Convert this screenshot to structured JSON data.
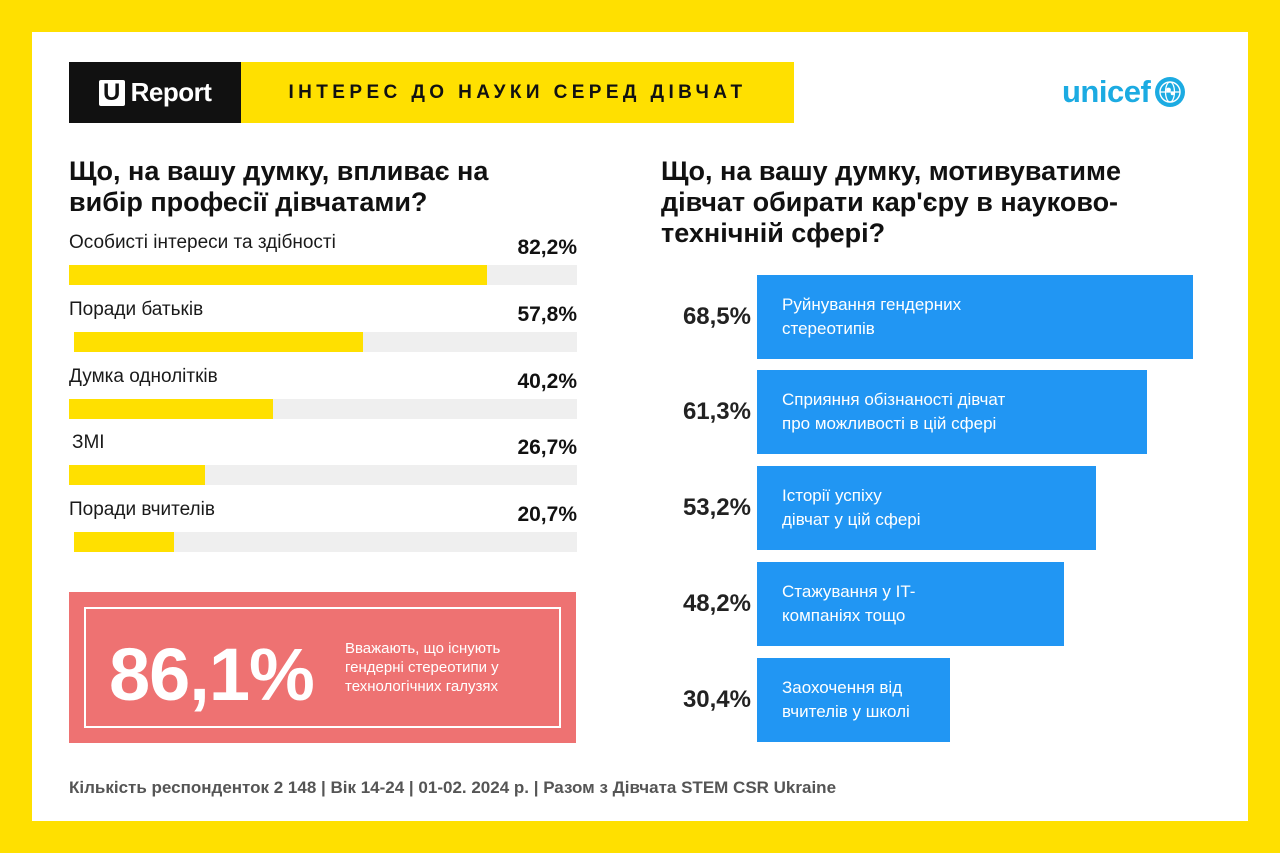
{
  "header": {
    "brand_letter": "U",
    "brand_name": "Report",
    "title": "ІНТЕРЕС ДО НАУКИ СЕРЕД ДІВЧАТ",
    "partner_logo": "unicef"
  },
  "left": {
    "question": "Що, на вашу думку, впливає на вибір професії дівчатами?"
  },
  "right": {
    "question": "Що, на вашу думку, мотивуватиме дівчат обирати кар'єру в науково-технічній сфері?"
  },
  "highlight": {
    "value": "86,1%",
    "text": "Вважають, що існують гендерні стереотипи у технологічних галузях"
  },
  "footer": {
    "text": "Кількість респонденток 2 148 |  Вік 14-24 | 01-02. 2024 р. | Разом з Дівчата STEM CSR Ukraine"
  },
  "colors": {
    "yellow": "#FFE000",
    "blue": "#2196F3",
    "coral": "#EE7272",
    "unicef_blue": "#1CABE2"
  },
  "chart_data": [
    {
      "type": "bar",
      "orientation": "horizontal",
      "title": "Що, на вашу думку, впливає на вибір професії дівчатами?",
      "categories": [
        "Особисті інтереси та здібності",
        "Поради  батьків",
        "Думка однолітків",
        "ЗМІ",
        "Поради вчителів"
      ],
      "values": [
        82.2,
        57.8,
        40.2,
        26.7,
        20.7
      ],
      "value_labels": [
        "82,2%",
        "57,8%",
        "40,2%",
        "26,7%",
        "20,7%"
      ],
      "xlim": [
        0,
        100
      ]
    },
    {
      "type": "bar",
      "orientation": "horizontal",
      "title": "Що, на вашу думку, мотивуватиме дівчат обирати кар'єру в науково-технічній сфері?",
      "categories": [
        "Руйнування гендерних стереотипів",
        "Сприяння  обізнаності дівчат про можливості в цій сфері",
        "Історії успіху дівчат у цій  сфері",
        "Стажування у IT-компаніях тощо",
        "Заохочення від вчителів у школі"
      ],
      "category_lines": [
        [
          "Руйнування гендерних",
          "стереотипів"
        ],
        [
          "Сприяння  обізнаності дівчат",
          "про можливості в цій сфері"
        ],
        [
          "Історії успіху",
          "дівчат у цій  сфері"
        ],
        [
          "Стажування у IT-",
          "компаніях тощо"
        ],
        [
          "Заохочення від",
          "вчителів у школі"
        ]
      ],
      "values": [
        68.5,
        61.3,
        53.2,
        48.2,
        30.4
      ],
      "value_labels": [
        "68,5%",
        "61,3%",
        "53,2%",
        "48,2%",
        "30,4%"
      ],
      "xlim": [
        0,
        68.5
      ]
    }
  ]
}
